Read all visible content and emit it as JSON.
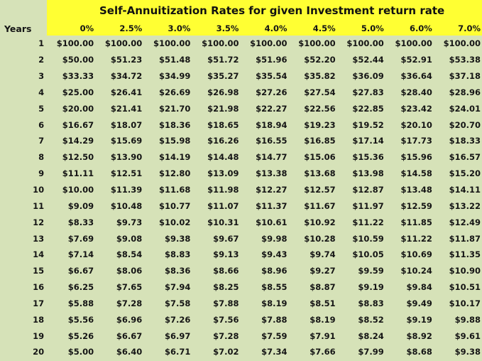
{
  "title": "Self-Annuitization Rates for given Investment return rate",
  "header": {
    "years_label": "Years",
    "rates": [
      "0%",
      "2.5%",
      "3.0%",
      "3.5%",
      "4.0%",
      "4.5%",
      "5.0%",
      "6.0%",
      "7.0%"
    ]
  },
  "rows": [
    {
      "year": "1",
      "values": [
        "$100.00",
        "$100.00",
        "$100.00",
        "$100.00",
        "$100.00",
        "$100.00",
        "$100.00",
        "$100.00",
        "$100.00"
      ]
    },
    {
      "year": "2",
      "values": [
        "$50.00",
        "$51.23",
        "$51.48",
        "$51.72",
        "$51.96",
        "$52.20",
        "$52.44",
        "$52.91",
        "$53.38"
      ]
    },
    {
      "year": "3",
      "values": [
        "$33.33",
        "$34.72",
        "$34.99",
        "$35.27",
        "$35.54",
        "$35.82",
        "$36.09",
        "$36.64",
        "$37.18"
      ]
    },
    {
      "year": "4",
      "values": [
        "$25.00",
        "$26.41",
        "$26.69",
        "$26.98",
        "$27.26",
        "$27.54",
        "$27.83",
        "$28.40",
        "$28.96"
      ]
    },
    {
      "year": "5",
      "values": [
        "$20.00",
        "$21.41",
        "$21.70",
        "$21.98",
        "$22.27",
        "$22.56",
        "$22.85",
        "$23.42",
        "$24.01"
      ]
    },
    {
      "year": "6",
      "values": [
        "$16.67",
        "$18.07",
        "$18.36",
        "$18.65",
        "$18.94",
        "$19.23",
        "$19.52",
        "$20.10",
        "$20.70"
      ]
    },
    {
      "year": "7",
      "values": [
        "$14.29",
        "$15.69",
        "$15.98",
        "$16.26",
        "$16.55",
        "$16.85",
        "$17.14",
        "$17.73",
        "$18.33"
      ]
    },
    {
      "year": "8",
      "values": [
        "$12.50",
        "$13.90",
        "$14.19",
        "$14.48",
        "$14.77",
        "$15.06",
        "$15.36",
        "$15.96",
        "$16.57"
      ]
    },
    {
      "year": "9",
      "values": [
        "$11.11",
        "$12.51",
        "$12.80",
        "$13.09",
        "$13.38",
        "$13.68",
        "$13.98",
        "$14.58",
        "$15.20"
      ]
    },
    {
      "year": "10",
      "values": [
        "$10.00",
        "$11.39",
        "$11.68",
        "$11.98",
        "$12.27",
        "$12.57",
        "$12.87",
        "$13.48",
        "$14.11"
      ]
    },
    {
      "year": "11",
      "values": [
        "$9.09",
        "$10.48",
        "$10.77",
        "$11.07",
        "$11.37",
        "$11.67",
        "$11.97",
        "$12.59",
        "$13.22"
      ]
    },
    {
      "year": "12",
      "values": [
        "$8.33",
        "$9.73",
        "$10.02",
        "$10.31",
        "$10.61",
        "$10.92",
        "$11.22",
        "$11.85",
        "$12.49"
      ]
    },
    {
      "year": "13",
      "values": [
        "$7.69",
        "$9.08",
        "$9.38",
        "$9.67",
        "$9.98",
        "$10.28",
        "$10.59",
        "$11.22",
        "$11.87"
      ]
    },
    {
      "year": "14",
      "values": [
        "$7.14",
        "$8.54",
        "$8.83",
        "$9.13",
        "$9.43",
        "$9.74",
        "$10.05",
        "$10.69",
        "$11.35"
      ]
    },
    {
      "year": "15",
      "values": [
        "$6.67",
        "$8.06",
        "$8.36",
        "$8.66",
        "$8.96",
        "$9.27",
        "$9.59",
        "$10.24",
        "$10.90"
      ]
    },
    {
      "year": "16",
      "values": [
        "$6.25",
        "$7.65",
        "$7.94",
        "$8.25",
        "$8.55",
        "$8.87",
        "$9.19",
        "$9.84",
        "$10.51"
      ]
    },
    {
      "year": "17",
      "values": [
        "$5.88",
        "$7.28",
        "$7.58",
        "$7.88",
        "$8.19",
        "$8.51",
        "$8.83",
        "$9.49",
        "$10.17"
      ]
    },
    {
      "year": "18",
      "values": [
        "$5.56",
        "$6.96",
        "$7.26",
        "$7.56",
        "$7.88",
        "$8.19",
        "$8.52",
        "$9.19",
        "$9.88"
      ]
    },
    {
      "year": "19",
      "values": [
        "$5.26",
        "$6.67",
        "$6.97",
        "$7.28",
        "$7.59",
        "$7.91",
        "$8.24",
        "$8.92",
        "$9.61"
      ]
    },
    {
      "year": "20",
      "values": [
        "$5.00",
        "$6.40",
        "$6.71",
        "$7.02",
        "$7.34",
        "$7.66",
        "$7.99",
        "$8.68",
        "$9.38"
      ]
    }
  ],
  "colors": {
    "header_bg": "#ffff33",
    "sheet_bg": "#d6e2b8",
    "text": "#151515"
  }
}
